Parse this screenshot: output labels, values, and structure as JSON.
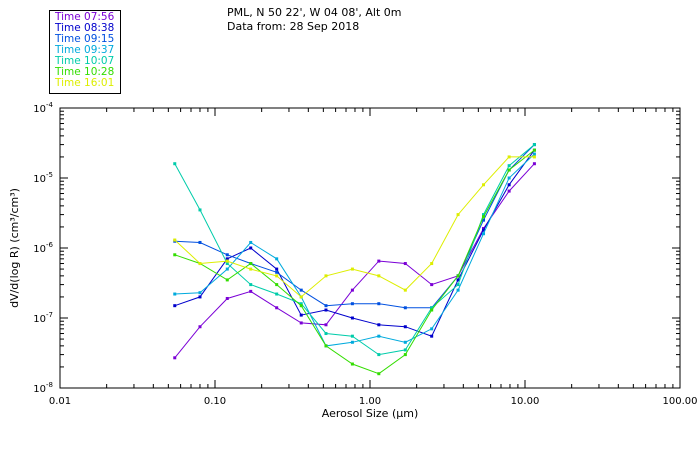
{
  "header": {
    "location": "PML, N 50 22', W 04 08', Alt 0m",
    "date_line": "Data from: 28 Sep 2018"
  },
  "chart_data": {
    "type": "line",
    "x_scale": "log",
    "y_scale": "log",
    "xlabel": "Aerosol Size (μm)",
    "ylabel": "dV/d(log R) (cm³/cm³)",
    "xlim": [
      0.01,
      100
    ],
    "ylim": [
      1e-08,
      0.0001
    ],
    "x_tick_values": [
      0.01,
      0.1,
      1,
      10,
      100
    ],
    "x_tick_labels": [
      "0.01",
      "0.10",
      "1.00",
      "10.00",
      "100.00"
    ],
    "y_tick_values": [
      1e-08,
      1e-07,
      1e-06,
      1e-05,
      0.0001
    ],
    "y_tick_labels": [
      "10",
      "10",
      "10",
      "10",
      "10"
    ],
    "y_tick_exponents": [
      "-8",
      "-7",
      "-6",
      "-5",
      "-4"
    ],
    "legend_position": "top-left, outside plot",
    "series": [
      {
        "name": "Time 07:56",
        "color": "#7b00d6",
        "x": [
          0.055,
          0.08,
          0.12,
          0.17,
          0.25,
          0.36,
          0.52,
          0.77,
          1.14,
          1.69,
          2.5,
          3.7,
          5.4,
          7.9,
          11.5
        ],
        "y": [
          2.7e-08,
          7.5e-08,
          1.9e-07,
          2.4e-07,
          1.4e-07,
          8.5e-08,
          8e-08,
          2.5e-07,
          6.5e-07,
          6e-07,
          3e-07,
          4e-07,
          1.9e-06,
          6.5e-06,
          1.6e-05
        ]
      },
      {
        "name": "Time 08:38",
        "color": "#0000cc",
        "x": [
          0.055,
          0.08,
          0.12,
          0.17,
          0.25,
          0.36,
          0.52,
          0.77,
          1.14,
          1.69,
          2.5,
          3.7,
          5.4,
          7.9,
          11.5
        ],
        "y": [
          1.5e-07,
          2e-07,
          7e-07,
          1e-06,
          5e-07,
          1.1e-07,
          1.3e-07,
          1e-07,
          8e-08,
          7.5e-08,
          5.5e-08,
          3.5e-07,
          1.8e-06,
          8e-06,
          2.5e-05
        ]
      },
      {
        "name": "Time 09:15",
        "color": "#0050e0",
        "x": [
          0.055,
          0.08,
          0.12,
          0.17,
          0.25,
          0.36,
          0.52,
          0.77,
          1.14,
          1.69,
          2.5,
          3.7,
          5.4,
          7.9,
          11.5
        ],
        "y": [
          1.25e-06,
          1.2e-06,
          8e-07,
          6e-07,
          4.5e-07,
          2.5e-07,
          1.5e-07,
          1.6e-07,
          1.6e-07,
          1.4e-07,
          1.4e-07,
          4e-07,
          2.5e-06,
          1.3e-05,
          3e-05
        ]
      },
      {
        "name": "Time 09:37",
        "color": "#00aadd",
        "x": [
          0.055,
          0.08,
          0.12,
          0.17,
          0.25,
          0.36,
          0.52,
          0.77,
          1.14,
          1.69,
          2.5,
          3.7,
          5.4,
          7.9,
          11.5
        ],
        "y": [
          2.2e-07,
          2.3e-07,
          5e-07,
          1.2e-06,
          7e-07,
          2e-07,
          4e-08,
          4.5e-08,
          5.5e-08,
          4.5e-08,
          7e-08,
          2.5e-07,
          1.6e-06,
          1e-05,
          2.2e-05
        ]
      },
      {
        "name": "Time 10:07",
        "color": "#00ccaa",
        "x": [
          0.055,
          0.08,
          0.12,
          0.17,
          0.25,
          0.36,
          0.52,
          0.77,
          1.14,
          1.69,
          2.5,
          3.7,
          5.4,
          7.9,
          11.5
        ],
        "y": [
          1.6e-05,
          3.5e-06,
          6e-07,
          3e-07,
          2.2e-07,
          1.6e-07,
          6e-08,
          5.5e-08,
          3e-08,
          3.5e-08,
          1.4e-07,
          3e-07,
          3e-06,
          1.5e-05,
          3e-05
        ]
      },
      {
        "name": "Time 10:28",
        "color": "#33dd00",
        "x": [
          0.055,
          0.08,
          0.12,
          0.17,
          0.25,
          0.36,
          0.52,
          0.77,
          1.14,
          1.69,
          2.5,
          3.7,
          5.4,
          7.9,
          11.5
        ],
        "y": [
          8e-07,
          6e-07,
          3.5e-07,
          6e-07,
          3e-07,
          1.5e-07,
          4e-08,
          2.2e-08,
          1.6e-08,
          3e-08,
          1.3e-07,
          4e-07,
          2.8e-06,
          1.3e-05,
          2.5e-05
        ]
      },
      {
        "name": "Time 16:01",
        "color": "#ddee00",
        "x": [
          0.055,
          0.08,
          0.12,
          0.17,
          0.25,
          0.36,
          0.52,
          0.77,
          1.14,
          1.69,
          2.5,
          3.7,
          5.4,
          7.9,
          11.5
        ],
        "y": [
          1.3e-06,
          6e-07,
          6.5e-07,
          5e-07,
          4e-07,
          2e-07,
          4e-07,
          5e-07,
          4e-07,
          2.5e-07,
          6e-07,
          3e-06,
          8e-06,
          2e-05,
          2e-05
        ]
      }
    ]
  }
}
